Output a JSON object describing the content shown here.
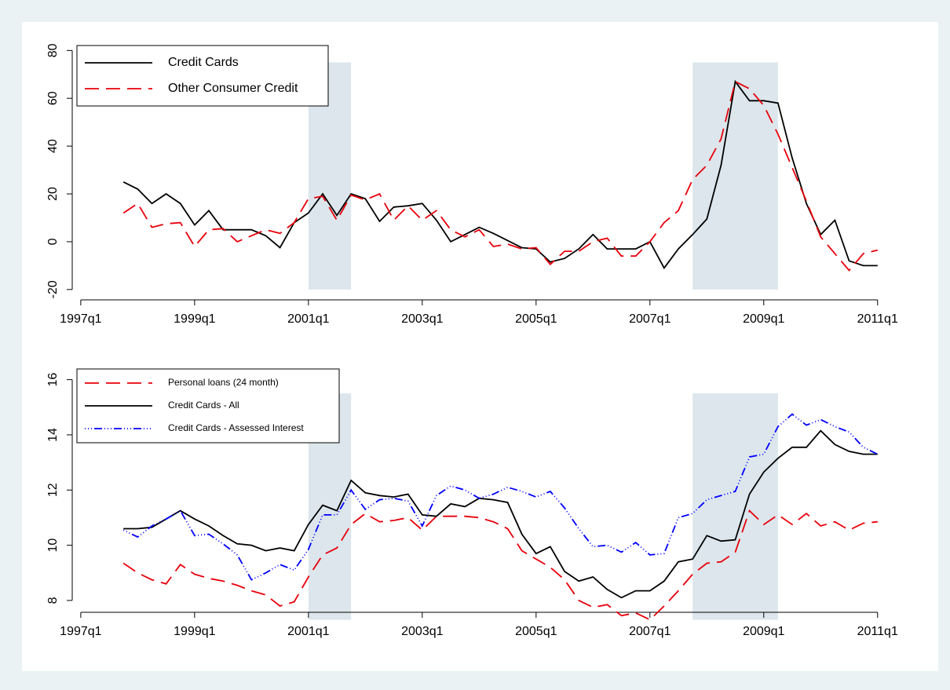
{
  "chart_data": [
    {
      "type": "line",
      "x": [
        1997.75,
        1998,
        1998.25,
        1998.5,
        1998.75,
        1999,
        1999.25,
        1999.5,
        1999.75,
        2000,
        2000.25,
        2000.5,
        2000.75,
        2001,
        2001.25,
        2001.5,
        2001.75,
        2002,
        2002.25,
        2002.5,
        2002.75,
        2003,
        2003.25,
        2003.5,
        2003.75,
        2004,
        2004.25,
        2004.5,
        2004.75,
        2005,
        2005.25,
        2005.5,
        2005.75,
        2006,
        2006.25,
        2006.5,
        2006.75,
        2007,
        2007.25,
        2007.5,
        2007.75,
        2008,
        2008.25,
        2008.5,
        2008.75,
        2009,
        2009.25,
        2009.5,
        2009.75,
        2010,
        2010.25,
        2010.5,
        2010.75,
        2011
      ],
      "series": [
        {
          "name": "Credit Cards",
          "color": "#000000",
          "dash": "solid",
          "values": [
            25,
            22,
            16,
            20,
            16,
            7,
            13,
            5,
            5,
            5,
            2.5,
            -2.5,
            8,
            12,
            20,
            11,
            20,
            18,
            8.5,
            14.5,
            15,
            16,
            9,
            0,
            3,
            6,
            3.5,
            0.5,
            -2.5,
            -3,
            -8.5,
            -7,
            -3,
            3,
            -3,
            -3,
            -3,
            0,
            -11,
            -3,
            3,
            9.5,
            32,
            67,
            59,
            59,
            58,
            35,
            16,
            3,
            9,
            -8,
            -10,
            -10
          ]
        },
        {
          "name": "Other Consumer Credit",
          "color": "#e8000b",
          "dash": "dashed",
          "values": [
            12,
            16,
            6,
            7.5,
            8,
            -2,
            5,
            5.5,
            0,
            2.5,
            5,
            3.5,
            8,
            18,
            19,
            9,
            19.5,
            17.5,
            20,
            9,
            15,
            9,
            13,
            5,
            2,
            5,
            -2,
            -1,
            -3,
            -2.5,
            -9.5,
            -4,
            -4,
            0,
            1.5,
            -6,
            -6,
            0,
            8,
            13,
            26,
            32,
            43,
            67,
            64,
            57,
            45,
            31,
            17,
            2,
            -5,
            -12,
            -5,
            -3.5
          ]
        }
      ],
      "xlim": [
        1996.85,
        2011.5
      ],
      "xticks": [
        {
          "value": 1997,
          "label": "1997q1"
        },
        {
          "value": 1999,
          "label": "1999q1"
        },
        {
          "value": 2001,
          "label": "2001q1"
        },
        {
          "value": 2003,
          "label": "2003q1"
        },
        {
          "value": 2005,
          "label": "2005q1"
        },
        {
          "value": 2007,
          "label": "2007q1"
        },
        {
          "value": 2009,
          "label": "2009q1"
        },
        {
          "value": 2011,
          "label": "2011q1"
        }
      ],
      "ylim": [
        -24,
        87
      ],
      "yticks": [
        -20,
        0,
        20,
        40,
        60,
        80
      ],
      "shaded_regions": [
        {
          "x": [
            2001,
            2001.75
          ],
          "y": [
            -20,
            75
          ]
        },
        {
          "x": [
            2007.75,
            2009.25
          ],
          "y": [
            -20,
            75
          ]
        }
      ],
      "legend": "top-left",
      "grid": false
    },
    {
      "type": "line",
      "x": [
        1997.75,
        1998,
        1998.25,
        1998.5,
        1998.75,
        1999,
        1999.25,
        1999.5,
        1999.75,
        2000,
        2000.25,
        2000.5,
        2000.75,
        2001,
        2001.25,
        2001.5,
        2001.75,
        2002,
        2002.25,
        2002.5,
        2002.75,
        2003,
        2003.25,
        2003.5,
        2003.75,
        2004,
        2004.25,
        2004.5,
        2004.75,
        2005,
        2005.25,
        2005.5,
        2005.75,
        2006,
        2006.25,
        2006.5,
        2006.75,
        2007,
        2007.25,
        2007.5,
        2007.75,
        2008,
        2008.25,
        2008.5,
        2008.75,
        2009,
        2009.25,
        2009.5,
        2009.75,
        2010,
        2010.25,
        2010.5,
        2010.75,
        2011
      ],
      "series": [
        {
          "name": "Personal loans (24 month)",
          "color": "#e8000b",
          "dash": "dashed",
          "values": [
            9.35,
            9.0,
            8.75,
            8.6,
            9.3,
            8.95,
            8.8,
            8.7,
            8.55,
            8.35,
            8.2,
            7.8,
            7.95,
            8.85,
            9.65,
            9.9,
            10.75,
            11.15,
            10.85,
            10.9,
            11.0,
            10.55,
            11.05,
            11.05,
            11.05,
            11.0,
            10.85,
            10.6,
            9.8,
            9.5,
            9.2,
            8.75,
            8.0,
            7.75,
            7.85,
            7.45,
            7.55,
            7.3,
            7.8,
            8.35,
            8.95,
            9.35,
            9.4,
            9.75,
            11.25,
            10.75,
            11.1,
            10.75,
            11.15,
            10.7,
            10.85,
            10.55,
            10.8,
            10.85
          ]
        },
        {
          "name": "Credit Cards - All",
          "color": "#000000",
          "dash": "solid",
          "values": [
            10.6,
            10.6,
            10.65,
            10.95,
            11.25,
            10.95,
            10.7,
            10.35,
            10.05,
            10.0,
            9.8,
            9.9,
            9.8,
            10.75,
            11.45,
            11.25,
            12.35,
            11.9,
            11.8,
            11.75,
            11.85,
            11.1,
            11.05,
            11.5,
            11.4,
            11.7,
            11.65,
            11.55,
            10.4,
            9.7,
            9.95,
            9.05,
            8.7,
            8.85,
            8.4,
            8.1,
            8.35,
            8.35,
            8.7,
            9.4,
            9.5,
            10.35,
            10.15,
            10.2,
            11.85,
            12.65,
            13.15,
            13.55,
            13.55,
            14.15,
            13.65,
            13.4,
            13.3,
            13.3
          ]
        },
        {
          "name": "Credit Cards - Assessed Interest",
          "color": "#0000ff",
          "dash": "dashdot",
          "values": [
            10.55,
            10.3,
            10.7,
            10.95,
            11.25,
            10.35,
            10.4,
            10.05,
            9.65,
            8.75,
            9.0,
            9.3,
            9.1,
            9.85,
            11.1,
            11.1,
            12.0,
            11.3,
            11.65,
            11.7,
            11.6,
            10.7,
            11.8,
            12.15,
            12.0,
            11.7,
            11.85,
            12.1,
            11.95,
            11.75,
            11.95,
            11.35,
            10.6,
            9.95,
            10.0,
            9.75,
            10.1,
            9.65,
            9.7,
            11.0,
            11.15,
            11.65,
            11.8,
            11.95,
            13.2,
            13.3,
            14.3,
            14.75,
            14.35,
            14.55,
            14.3,
            14.1,
            13.55,
            13.3
          ]
        }
      ],
      "xlim": [
        1996.85,
        2011.5
      ],
      "xticks": [
        {
          "value": 1997,
          "label": "1997q1"
        },
        {
          "value": 1999,
          "label": "1999q1"
        },
        {
          "value": 2001,
          "label": "2001q1"
        },
        {
          "value": 2003,
          "label": "2003q1"
        },
        {
          "value": 2005,
          "label": "2005q1"
        },
        {
          "value": 2007,
          "label": "2007q1"
        },
        {
          "value": 2009,
          "label": "2009q1"
        },
        {
          "value": 2011,
          "label": "2011q1"
        }
      ],
      "ylim": [
        7.6,
        16.7
      ],
      "yticks": [
        8,
        10,
        12,
        14,
        16
      ],
      "shaded_regions": [
        {
          "x": [
            2001,
            2001.75
          ],
          "y": [
            7.3,
            15.5
          ]
        },
        {
          "x": [
            2007.75,
            2009.25
          ],
          "y": [
            7.3,
            15.5
          ]
        }
      ],
      "legend": "top-left",
      "grid": false
    }
  ]
}
